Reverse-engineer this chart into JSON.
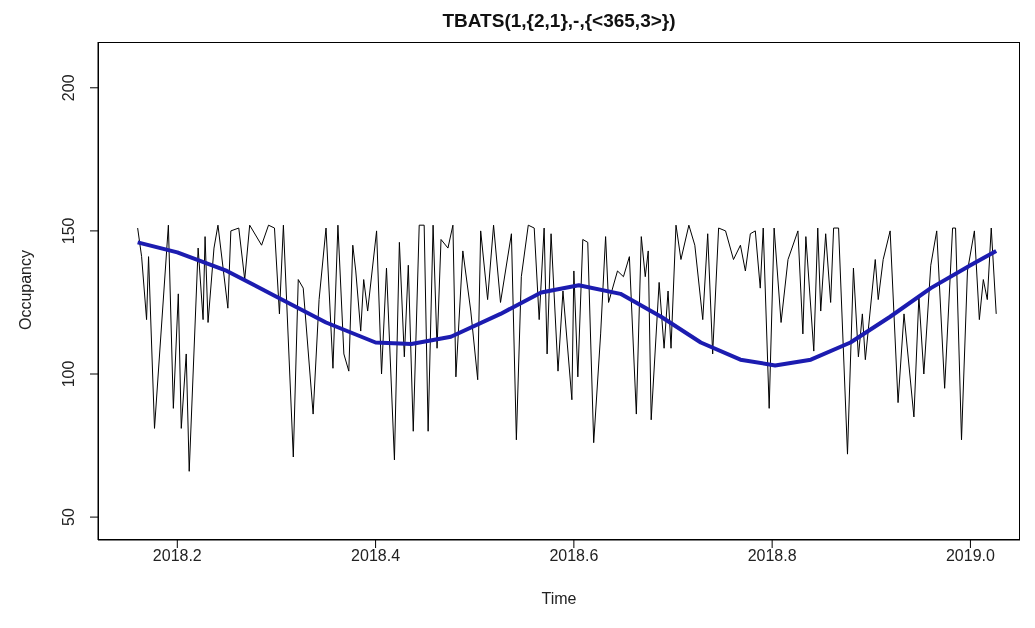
{
  "chart_data": {
    "type": "line",
    "title": "TBATS(1,{2,1},-,{<365,3>})",
    "xlabel": "Time",
    "ylabel": "Occupancy",
    "xlim": [
      2018.12,
      2019.05
    ],
    "xticks": [
      {
        "value": 2018.2,
        "label": "2018.2"
      },
      {
        "value": 2018.4,
        "label": "2018.4"
      },
      {
        "value": 2018.6,
        "label": "2018.6"
      },
      {
        "value": 2018.8,
        "label": "2018.8"
      },
      {
        "value": 2019,
        "label": "2019.0"
      }
    ],
    "ylim": [
      42,
      216
    ],
    "yticks": [
      50,
      100,
      150,
      200
    ],
    "marker": "none",
    "line_style": "solid",
    "series": [
      {
        "color": "#000000",
        "x": [
          2018.16,
          2018.164,
          2018.169,
          2018.171,
          2018.177,
          2018.191,
          2018.196,
          2018.201,
          2018.204,
          2018.209,
          2018.212,
          2018.221,
          2018.226,
          2018.228,
          2018.231,
          2018.237,
          2018.241,
          2018.251,
          2018.254,
          2018.262,
          2018.268,
          2018.273,
          2018.285,
          2018.292,
          2018.298,
          2018.303,
          2018.307,
          2018.317,
          2018.322,
          2018.327,
          2018.337,
          2018.343,
          2018.35,
          2018.357,
          2018.362,
          2018.368,
          2018.373,
          2018.377,
          2018.38,
          2018.385,
          2018.388,
          2018.392,
          2018.401,
          2018.406,
          2018.411,
          2018.419,
          2018.424,
          2018.429,
          2018.433,
          2018.438,
          2018.444,
          2018.449,
          2018.453,
          2018.458,
          2018.462,
          2018.466,
          2018.473,
          2018.478,
          2018.481,
          2018.488,
          2018.496,
          2018.503,
          2018.506,
          2018.513,
          2018.519,
          2018.526,
          2018.537,
          2018.542,
          2018.547,
          2018.554,
          2018.56,
          2018.565,
          2018.57,
          2018.573,
          2018.577,
          2018.584,
          2018.589,
          2018.598,
          2018.6,
          2018.604,
          2018.609,
          2018.614,
          2018.62,
          2018.627,
          2018.632,
          2018.635,
          2018.644,
          2018.65,
          2018.656,
          2018.663,
          2018.668,
          2018.672,
          2018.675,
          2018.678,
          2018.686,
          2018.691,
          2018.695,
          2018.698,
          2018.703,
          2018.708,
          2018.716,
          2018.722,
          2018.73,
          2018.735,
          2018.74,
          2018.746,
          2018.753,
          2018.761,
          2018.768,
          2018.773,
          2018.778,
          2018.783,
          2018.788,
          2018.791,
          2018.797,
          2018.802,
          2018.809,
          2018.816,
          2018.826,
          2018.831,
          2018.834,
          2018.842,
          2018.846,
          2018.849,
          2018.854,
          2018.859,
          2018.862,
          2018.867,
          2018.876,
          2018.882,
          2018.887,
          2018.891,
          2018.894,
          2018.904,
          2018.907,
          2018.912,
          2018.919,
          2018.927,
          2018.933,
          2018.943,
          2018.948,
          2018.953,
          2018.96,
          2018.966,
          2018.974,
          2018.982,
          2018.985,
          2018.991,
          2018.997,
          2019.004,
          2019.009,
          2019.013,
          2019.017,
          2019.021,
          2019.026
        ],
        "values": [
          151,
          141,
          119,
          141,
          81,
          152,
          88,
          128,
          81,
          107,
          66,
          144,
          119,
          148,
          118,
          144,
          152,
          123,
          150,
          151,
          133,
          152,
          145,
          152,
          151,
          121,
          152,
          71,
          133,
          130,
          86,
          126,
          151,
          102,
          152,
          107,
          101,
          145,
          136,
          115,
          133,
          122,
          150,
          100,
          137,
          70,
          146,
          106,
          138,
          80,
          152,
          152,
          80,
          152,
          109,
          147,
          144,
          152,
          99,
          143,
          122,
          98,
          150,
          126,
          152,
          125,
          149,
          77,
          134,
          152,
          151,
          119,
          151,
          107,
          149,
          101,
          129,
          91,
          136,
          99,
          147,
          146,
          76,
          114,
          148,
          125,
          136,
          134,
          141,
          86,
          148,
          134,
          143,
          84,
          132,
          109,
          129,
          109,
          152,
          140,
          152,
          145,
          119,
          149,
          107,
          151,
          150,
          140,
          145,
          136,
          149,
          150,
          130,
          151,
          88,
          151,
          118,
          140,
          150,
          114,
          148,
          108,
          151,
          122,
          149,
          125,
          151,
          151,
          72,
          137,
          106,
          121,
          105,
          140,
          126,
          140,
          150,
          90,
          121,
          85,
          127,
          100,
          138,
          150,
          95,
          151,
          151,
          77,
          136,
          150,
          119,
          133,
          126,
          151,
          121
        ]
      },
      {
        "color": "#1c1cb0",
        "x": [
          2018.16,
          2018.2,
          2018.25,
          2018.3,
          2018.35,
          2018.4,
          2018.436,
          2018.476,
          2018.526,
          2018.567,
          2018.605,
          2018.647,
          2018.688,
          2018.728,
          2018.768,
          2018.803,
          2018.839,
          2018.879,
          2018.919,
          2018.96,
          2019.0,
          2019.026
        ],
        "values": [
          146,
          142.5,
          136,
          127,
          118,
          111,
          110.5,
          113,
          121,
          128.5,
          131,
          128,
          120,
          111,
          105,
          103,
          105,
          111,
          120,
          130,
          138,
          143
        ]
      }
    ]
  }
}
